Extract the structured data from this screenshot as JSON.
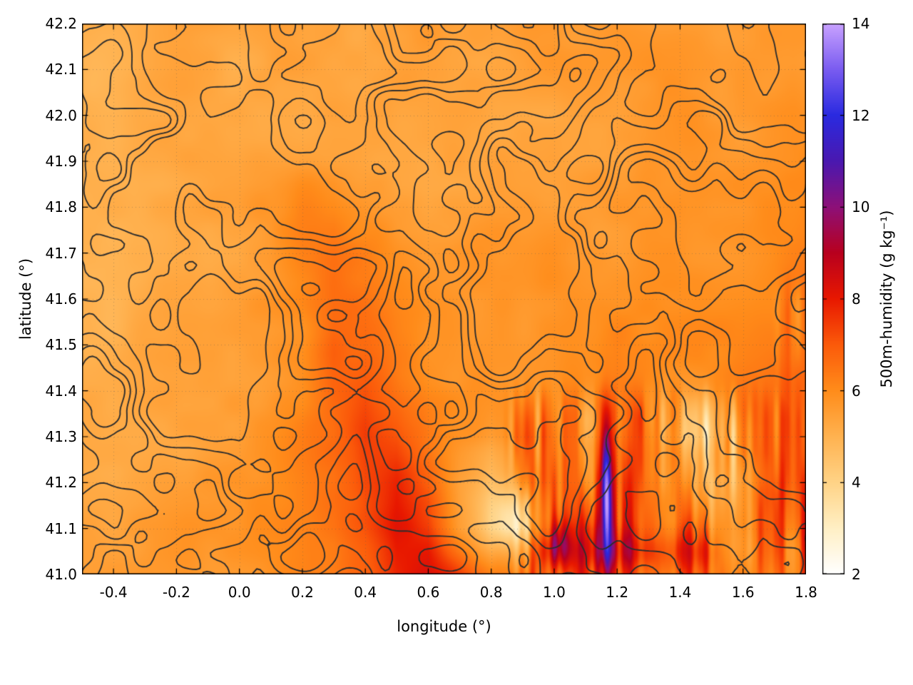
{
  "chart_data": {
    "type": "heatmap",
    "title": "",
    "xlabel": "longitude (°)",
    "ylabel": "latitude (°)",
    "xlim": [
      -0.5,
      1.8
    ],
    "ylim": [
      41.0,
      42.2
    ],
    "x_ticks": [
      "-0.4",
      "-0.2",
      "0.0",
      "0.2",
      "0.4",
      "0.6",
      "0.8",
      "1.0",
      "1.2",
      "1.4",
      "1.6",
      "1.8"
    ],
    "y_ticks": [
      "41.0",
      "41.1",
      "41.2",
      "41.3",
      "41.4",
      "41.5",
      "41.6",
      "41.7",
      "41.8",
      "41.9",
      "42.0",
      "42.1",
      "42.2"
    ],
    "grid_on": true,
    "colorbar": {
      "label": "500m-humidity (g kg⁻¹)",
      "min": 2,
      "max": 14,
      "ticks": [
        2,
        4,
        6,
        8,
        10,
        12,
        14
      ],
      "palette": [
        {
          "v": 2.0,
          "c": "#ffffff"
        },
        {
          "v": 3.0,
          "c": "#ffefc4"
        },
        {
          "v": 4.0,
          "c": "#ffd386"
        },
        {
          "v": 5.0,
          "c": "#ffb250"
        },
        {
          "v": 6.0,
          "c": "#ff8c1a"
        },
        {
          "v": 7.0,
          "c": "#fb5a0a"
        },
        {
          "v": 8.0,
          "c": "#e81800"
        },
        {
          "v": 9.0,
          "c": "#b8001e"
        },
        {
          "v": 10.0,
          "c": "#8d1078"
        },
        {
          "v": 11.0,
          "c": "#4a18b0"
        },
        {
          "v": 12.0,
          "c": "#2a2ae0"
        },
        {
          "v": 13.0,
          "c": "#7a5cf0"
        },
        {
          "v": 14.0,
          "c": "#c9a2ff"
        }
      ]
    },
    "field": {
      "lon0": -0.5,
      "lon_step": 0.1,
      "lat0": 42.2,
      "lat_step": 0.1,
      "values": [
        [
          5.1,
          5.2,
          5.2,
          5.3,
          5.3,
          5.3,
          5.4,
          5.4,
          5.4,
          5.3,
          5.3,
          5.4,
          5.4,
          5.5,
          5.5,
          5.5,
          5.4,
          5.5,
          5.5,
          5.6,
          5.6,
          5.6,
          5.7,
          5.7
        ],
        [
          5.1,
          5.1,
          5.2,
          5.2,
          5.3,
          5.3,
          5.4,
          5.4,
          5.3,
          5.3,
          5.4,
          5.4,
          5.5,
          5.5,
          5.4,
          5.5,
          5.5,
          5.5,
          5.6,
          5.6,
          5.7,
          5.7,
          5.7,
          5.8
        ],
        [
          5.0,
          5.1,
          5.1,
          5.2,
          5.2,
          5.3,
          5.3,
          5.4,
          5.4,
          5.4,
          5.4,
          5.5,
          5.5,
          5.4,
          5.5,
          5.5,
          5.6,
          5.6,
          5.6,
          5.7,
          5.7,
          5.8,
          5.8,
          5.8
        ],
        [
          5.1,
          5.1,
          5.2,
          5.2,
          5.3,
          5.3,
          5.4,
          5.5,
          5.6,
          5.5,
          5.5,
          5.5,
          5.5,
          5.5,
          5.5,
          5.6,
          5.6,
          5.6,
          5.7,
          5.7,
          5.8,
          5.8,
          5.8,
          5.9
        ],
        [
          5.1,
          5.2,
          5.2,
          5.3,
          5.3,
          5.4,
          5.6,
          6.1,
          6.2,
          5.9,
          5.6,
          5.5,
          5.5,
          5.6,
          5.6,
          5.6,
          5.6,
          5.7,
          5.7,
          5.8,
          5.8,
          5.8,
          5.9,
          5.9
        ],
        [
          5.1,
          5.2,
          5.2,
          5.3,
          5.4,
          5.5,
          5.7,
          6.3,
          6.5,
          6.2,
          5.8,
          5.6,
          5.6,
          5.6,
          5.6,
          5.7,
          5.7,
          5.7,
          5.8,
          5.8,
          5.8,
          5.9,
          5.9,
          6.0
        ],
        [
          5.0,
          5.1,
          5.2,
          5.3,
          5.4,
          5.5,
          5.8,
          6.2,
          6.7,
          6.5,
          6.0,
          5.7,
          5.6,
          5.6,
          5.7,
          5.7,
          5.7,
          5.8,
          5.8,
          5.8,
          5.9,
          5.9,
          6.0,
          6.3
        ],
        [
          5.0,
          5.1,
          5.2,
          5.2,
          5.3,
          5.5,
          5.7,
          6.0,
          6.9,
          6.8,
          6.2,
          5.8,
          5.7,
          5.7,
          5.7,
          5.8,
          5.8,
          6.2,
          5.9,
          5.9,
          5.9,
          6.0,
          6.2,
          6.5
        ],
        [
          5.1,
          5.1,
          5.2,
          5.3,
          5.4,
          5.5,
          5.7,
          6.0,
          6.9,
          7.3,
          6.6,
          6.0,
          5.8,
          5.8,
          5.8,
          5.9,
          6.0,
          6.5,
          6.1,
          5.9,
          5.9,
          6.0,
          6.4,
          6.8
        ],
        [
          5.2,
          5.2,
          5.3,
          5.4,
          5.5,
          5.6,
          5.8,
          6.1,
          6.6,
          7.6,
          7.2,
          6.3,
          5.9,
          5.5,
          6.2,
          6.4,
          6.0,
          6.8,
          6.5,
          5.4,
          5.0,
          5.6,
          6.8,
          7.2
        ],
        [
          5.3,
          5.3,
          5.4,
          5.5,
          5.6,
          5.7,
          5.9,
          6.2,
          6.6,
          7.5,
          7.9,
          6.8,
          5.4,
          4.6,
          5.6,
          6.8,
          6.2,
          7.4,
          6.9,
          6.0,
          4.8,
          5.4,
          7.0,
          7.3
        ],
        [
          5.4,
          5.4,
          5.5,
          5.6,
          5.7,
          5.8,
          6.0,
          6.3,
          6.6,
          7.2,
          8.2,
          7.6,
          5.6,
          4.3,
          4.6,
          6.9,
          7.3,
          7.8,
          7.2,
          6.8,
          6.0,
          6.0,
          6.8,
          7.0
        ],
        [
          5.5,
          5.5,
          5.6,
          5.6,
          5.7,
          5.8,
          6.0,
          6.3,
          6.6,
          7.0,
          8.0,
          8.4,
          7.4,
          6.2,
          6.4,
          6.8,
          7.0,
          7.2,
          7.0,
          6.8,
          6.6,
          6.4,
          6.3,
          6.2
        ]
      ]
    },
    "anomalies": [
      {
        "lon": 1.165,
        "lat": 41.17,
        "slon": 0.011,
        "slat": 0.1,
        "amp": 6.0
      },
      {
        "lon": 1.02,
        "lat": 41.07,
        "slon": 0.022,
        "slat": 0.035,
        "amp": 2.0
      },
      {
        "lon": 0.87,
        "lat": 41.12,
        "slon": 0.05,
        "slat": 0.04,
        "amp": -1.3
      },
      {
        "lon": 1.48,
        "lat": 41.33,
        "slon": 0.06,
        "slat": 0.05,
        "amp": -1.0
      }
    ],
    "streak_zones": [
      {
        "lon_from": 0.82,
        "lon_to": 1.8,
        "lat_from": 41.0,
        "lat_to": 41.45,
        "amp": 1.7
      },
      {
        "lon_from": 1.68,
        "lon_to": 1.8,
        "lat_from": 41.0,
        "lat_to": 41.68,
        "amp": 1.3
      }
    ],
    "bands": [
      {
        "lat": 41.05,
        "slat": 0.03,
        "lon_from": 0.9,
        "lon_to": 1.55,
        "amp": 1.1
      }
    ],
    "contours": {
      "levels": [
        0.36,
        0.44,
        0.52,
        0.6,
        0.68
      ],
      "color": "#2e2e2e",
      "width": 1.9
    }
  }
}
